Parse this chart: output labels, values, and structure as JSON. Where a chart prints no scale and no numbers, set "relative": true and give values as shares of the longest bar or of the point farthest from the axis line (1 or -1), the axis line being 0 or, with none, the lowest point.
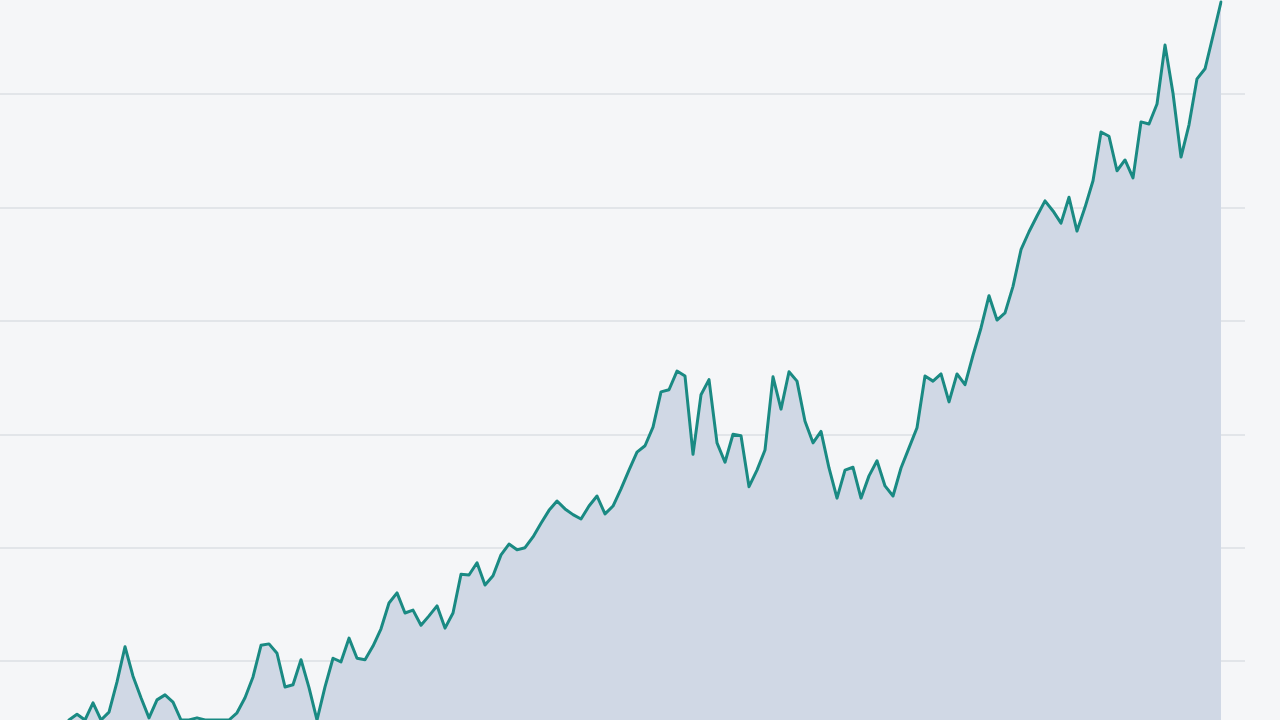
{
  "chart_data": {
    "type": "area",
    "categories": [
      null,
      null,
      null,
      null,
      null,
      null,
      null,
      null,
      null,
      null,
      null,
      null,
      null,
      null,
      null,
      null,
      null,
      null,
      null,
      null,
      null,
      null,
      null,
      null,
      null,
      null,
      null,
      null,
      null,
      null,
      null,
      null,
      null,
      null,
      null,
      null,
      null,
      null,
      null,
      null,
      null,
      null,
      null,
      null,
      null,
      null,
      null,
      null,
      null,
      null,
      null,
      null,
      null,
      null,
      null,
      null,
      null,
      null,
      null,
      null,
      null,
      null,
      null,
      null,
      null,
      null,
      null,
      null,
      null,
      null,
      null,
      null,
      null,
      null,
      null,
      null,
      null,
      null,
      null,
      null,
      null,
      null,
      null,
      null,
      null,
      null,
      null,
      null,
      null,
      null,
      null,
      null,
      null,
      null,
      null,
      null,
      null,
      null,
      null,
      null,
      null,
      null,
      null,
      null,
      null,
      null,
      null,
      null,
      null,
      null,
      null,
      null,
      null,
      null,
      null,
      null,
      null,
      null,
      null,
      null,
      null,
      null,
      null,
      null,
      null,
      null,
      null,
      null,
      null,
      null,
      null,
      null,
      null,
      null,
      null,
      null,
      null,
      null,
      null,
      null,
      null,
      null,
      null,
      null,
      null
    ],
    "values": [
      0.0,
      0.008,
      0.0,
      0.024,
      0.0,
      0.011,
      0.053,
      0.102,
      0.061,
      0.031,
      0.003,
      0.028,
      0.035,
      0.025,
      0.0,
      0.0,
      0.003,
      0.0,
      0.0,
      0.0,
      0.0,
      0.01,
      0.031,
      0.06,
      0.104,
      0.106,
      0.093,
      0.046,
      0.049,
      0.084,
      0.045,
      0.0,
      0.046,
      0.086,
      0.081,
      0.114,
      0.086,
      0.084,
      0.103,
      0.127,
      0.163,
      0.177,
      0.149,
      0.153,
      0.132,
      0.145,
      0.159,
      0.128,
      0.149,
      0.203,
      0.202,
      0.219,
      0.188,
      0.201,
      0.23,
      0.245,
      0.237,
      0.24,
      0.255,
      0.274,
      0.292,
      0.305,
      0.294,
      0.286,
      0.28,
      0.298,
      0.312,
      0.287,
      0.298,
      0.322,
      0.348,
      0.373,
      0.382,
      0.408,
      0.457,
      0.46,
      0.486,
      0.479,
      0.37,
      0.453,
      0.474,
      0.386,
      0.359,
      0.398,
      0.396,
      0.325,
      0.348,
      0.376,
      0.478,
      0.433,
      0.485,
      0.472,
      0.416,
      0.386,
      0.402,
      0.351,
      0.309,
      0.348,
      0.352,
      0.309,
      0.34,
      0.361,
      0.326,
      0.312,
      0.351,
      0.379,
      0.407,
      0.479,
      0.472,
      0.482,
      0.443,
      0.482,
      0.467,
      0.508,
      0.546,
      0.591,
      0.557,
      0.567,
      0.604,
      0.655,
      0.68,
      0.702,
      0.723,
      0.709,
      0.692,
      0.728,
      0.681,
      0.714,
      0.751,
      0.819,
      0.813,
      0.765,
      0.78,
      0.755,
      0.833,
      0.83,
      0.858,
      0.94,
      0.873,
      0.784,
      0.829,
      0.893,
      0.907,
      0.953,
      1.0
    ],
    "color": "#1a8a83",
    "relative": true,
    "grid": "y"
  }
}
